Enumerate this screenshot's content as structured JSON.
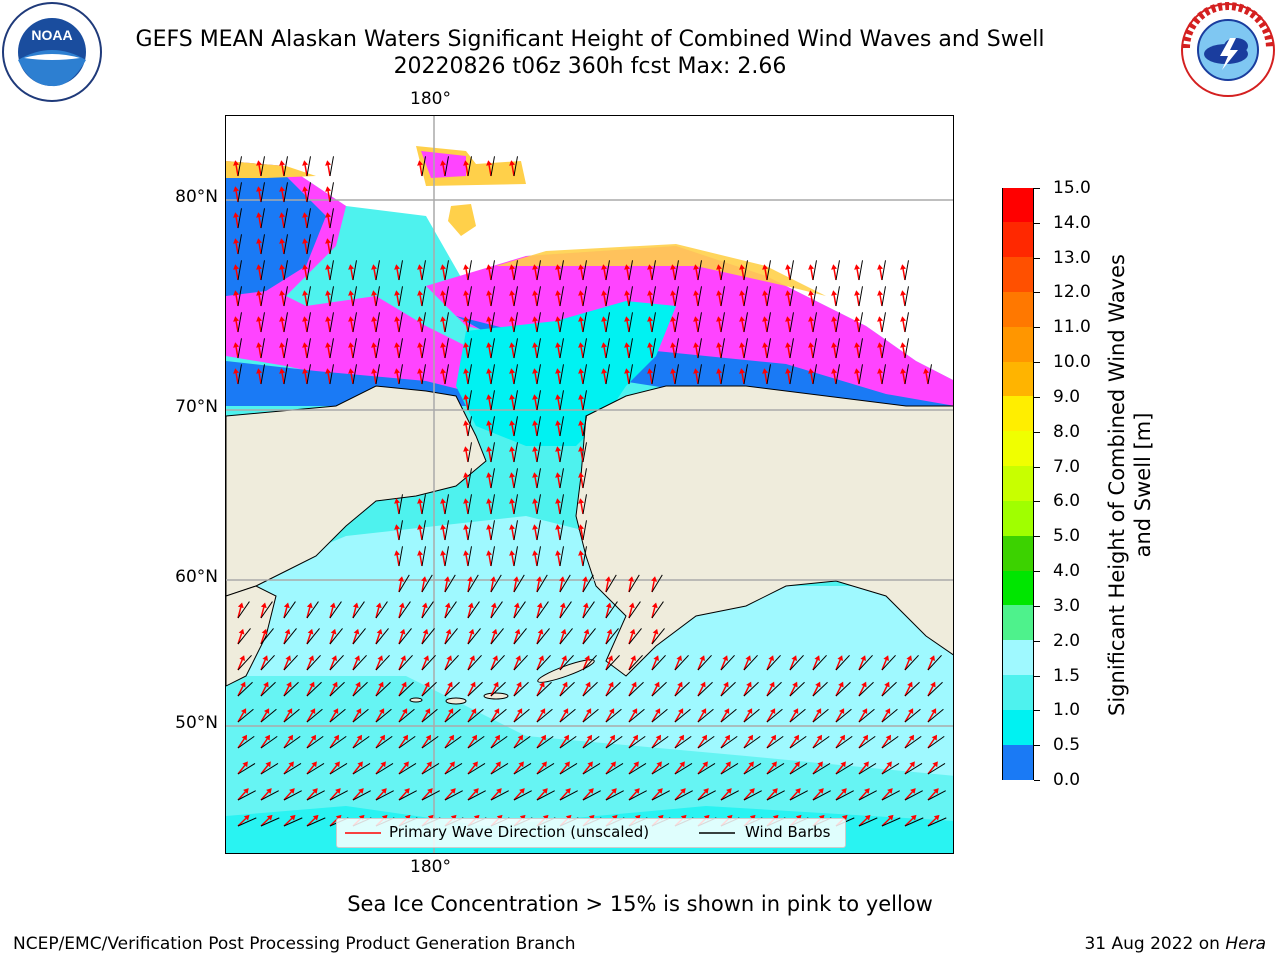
{
  "header": {
    "title_line1": "GEFS MEAN Alaskan Waters Significant Height of Combined Wind Waves and Swell",
    "title_line2": "20220826 t06z 360h fcst   Max: 2.66"
  },
  "logos": {
    "noaa": {
      "text": "NOAA",
      "ring_text": "NATIONAL OCEANIC AND ATMOSPHERIC ADMINISTRATION · U.S. DEPARTMENT OF COMMERCE"
    },
    "nws": {
      "ring_text": "NATIONAL WEATHER SERVICE"
    }
  },
  "map": {
    "lat_labels": [
      "80°N",
      "70°N",
      "60°N",
      "50°N"
    ],
    "lon_label_top": "180°",
    "lon_label_bottom": "180°",
    "colors": {
      "land": "#efecdc",
      "ocean_light": "#9ff9ff",
      "ocean_cyan": "#4ef2ee",
      "ocean_aqua": "#00f2f2",
      "ocean_blue": "#1a7af5",
      "ice_pink": "#ff44ff",
      "ice_orange": "#ffb04a",
      "ice_yellow": "#ffd04a",
      "grid": "#aaaaaa",
      "arrow": "#ff0000",
      "barb": "#000000"
    }
  },
  "colorbar": {
    "ticks": [
      "15.0",
      "14.0",
      "13.0",
      "12.0",
      "11.0",
      "10.0",
      "9.0",
      "8.0",
      "7.0",
      "6.0",
      "5.0",
      "4.0",
      "3.0",
      "2.0",
      "1.5",
      "1.0",
      "0.5",
      "0.0"
    ],
    "colors": [
      "#ff0000",
      "#ff2800",
      "#ff5000",
      "#ff7800",
      "#ff9600",
      "#ffb400",
      "#ffee00",
      "#f0ff00",
      "#c8ff00",
      "#a0ff00",
      "#3cd200",
      "#00e600",
      "#4ef28c",
      "#9ff9ff",
      "#4ef2ee",
      "#00f2f2",
      "#1a7af5",
      "#0000ff"
    ],
    "label": "Significant Height of Combined Wind Waves and Swell [m]"
  },
  "legend": {
    "items": [
      {
        "label": "Primary Wave Direction (unscaled)",
        "color": "#ff0000"
      },
      {
        "label": "Wind Barbs",
        "color": "#000000"
      }
    ]
  },
  "caption": "Sea Ice Concentration > 15% is shown in pink to yellow",
  "footer": {
    "left": "NCEP/EMC/Verification Post Processing Product Generation Branch",
    "right_date": "31 Aug 2022 on ",
    "right_host": "Hera"
  }
}
